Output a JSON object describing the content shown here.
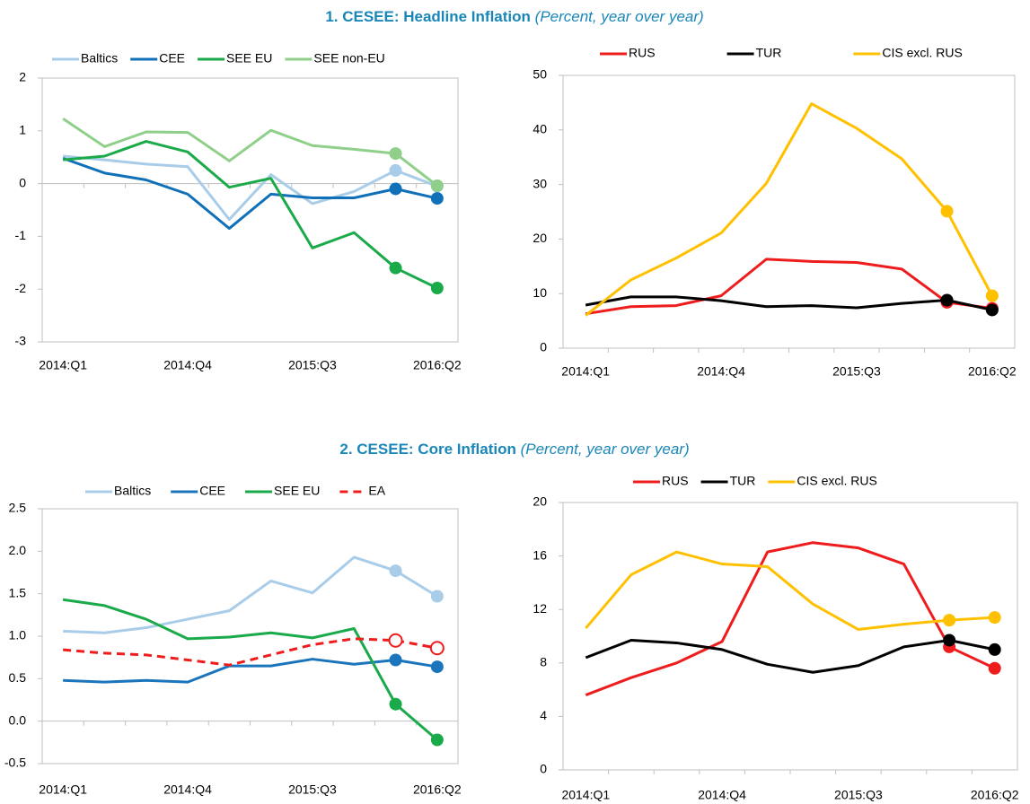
{
  "sections": [
    {
      "title": "1. CESEE: Headline Inflation",
      "subtitle": "(Percent, year over year)"
    },
    {
      "title": "2. CESEE: Core Inflation",
      "subtitle": "(Percent, year over year)"
    }
  ],
  "chart_data": [
    {
      "type": "line",
      "categories": [
        "2014:Q1",
        null,
        null,
        "2014:Q4",
        null,
        null,
        "2015:Q3",
        null,
        null,
        "2016:Q2"
      ],
      "ylim": [
        -3,
        2
      ],
      "yticks": [
        -3,
        -2,
        -1,
        0,
        1,
        2
      ],
      "series": [
        {
          "name": "Baltics",
          "color": "#a9cce8",
          "marker": "filled",
          "values": [
            0.52,
            0.45,
            0.37,
            0.32,
            -0.68,
            0.17,
            -0.38,
            -0.15,
            0.25,
            -0.05
          ]
        },
        {
          "name": "CEE",
          "color": "#1070b8",
          "marker": "filled",
          "values": [
            0.48,
            0.2,
            0.07,
            -0.2,
            -0.85,
            -0.2,
            -0.27,
            -0.27,
            -0.1,
            -0.28
          ]
        },
        {
          "name": "SEE EU",
          "color": "#1aaa4a",
          "marker": "filled",
          "values": [
            0.45,
            0.52,
            0.8,
            0.6,
            -0.07,
            0.1,
            -1.22,
            -0.93,
            -1.6,
            -1.98
          ]
        },
        {
          "name": "SEE non-EU",
          "color": "#8fcf8a",
          "marker": "filled",
          "values": [
            1.23,
            0.7,
            0.98,
            0.97,
            0.43,
            1.01,
            0.72,
            0.65,
            0.57,
            -0.04
          ]
        }
      ]
    },
    {
      "type": "line",
      "categories": [
        "2014:Q1",
        null,
        null,
        "2014:Q4",
        null,
        null,
        "2015:Q3",
        null,
        null,
        "2016:Q2"
      ],
      "ylim": [
        0,
        50
      ],
      "yticks": [
        0,
        10,
        20,
        30,
        40,
        50
      ],
      "series": [
        {
          "name": "RUS",
          "color": "#ee1c1c",
          "marker": "filled",
          "values": [
            6.3,
            7.6,
            7.8,
            9.6,
            16.3,
            15.9,
            15.7,
            14.5,
            8.4,
            7.3
          ]
        },
        {
          "name": "TUR",
          "color": "#000000",
          "marker": "filled",
          "values": [
            7.9,
            9.4,
            9.4,
            8.7,
            7.6,
            7.8,
            7.4,
            8.2,
            8.8,
            7.0
          ]
        },
        {
          "name": "CIS excl. RUS",
          "color": "#ffc000",
          "marker": "filled",
          "values": [
            6.0,
            12.5,
            16.5,
            21.1,
            30.2,
            44.8,
            40.3,
            34.7,
            25.1,
            9.6
          ]
        }
      ]
    },
    {
      "type": "line",
      "categories": [
        "2014:Q1",
        null,
        null,
        "2014:Q4",
        null,
        null,
        "2015:Q3",
        null,
        null,
        "2016:Q2"
      ],
      "ylim": [
        -0.5,
        2.5
      ],
      "yticks": [
        -0.5,
        {
          "value": 0,
          "label": "0.0"
        },
        0.5,
        {
          "value": 1,
          "label": "1.0"
        },
        1.5,
        {
          "value": 2,
          "label": "2.0"
        },
        2.5
      ],
      "series": [
        {
          "name": "Baltics",
          "color": "#a9cce8",
          "marker": "filled",
          "values": [
            1.06,
            1.04,
            1.1,
            1.2,
            1.3,
            1.65,
            1.51,
            1.93,
            1.77,
            1.47
          ]
        },
        {
          "name": "CEE",
          "color": "#1b75bc",
          "marker": "filled",
          "values": [
            0.48,
            0.46,
            0.48,
            0.46,
            0.65,
            0.65,
            0.73,
            0.67,
            0.72,
            0.64
          ]
        },
        {
          "name": "SEE EU",
          "color": "#1aaa4a",
          "marker": "filled",
          "values": [
            1.43,
            1.36,
            1.2,
            0.97,
            0.99,
            1.04,
            0.98,
            1.09,
            0.2,
            -0.22
          ]
        },
        {
          "name": "EA",
          "color": "#ee1c1c",
          "marker": "open",
          "dash": true,
          "values": [
            0.84,
            0.8,
            0.78,
            0.72,
            0.66,
            0.78,
            0.9,
            0.97,
            0.95,
            0.86
          ]
        }
      ]
    },
    {
      "type": "line",
      "categories": [
        "2014:Q1",
        null,
        null,
        "2014:Q4",
        null,
        null,
        "2015:Q3",
        null,
        null,
        "2016:Q2"
      ],
      "ylim": [
        0,
        20
      ],
      "yticks": [
        0,
        4,
        8,
        12,
        16,
        20
      ],
      "series": [
        {
          "name": "RUS",
          "color": "#ee1c1c",
          "marker": "filled",
          "values": [
            5.6,
            6.9,
            8.0,
            9.6,
            16.3,
            17.0,
            16.6,
            15.4,
            9.2,
            7.6
          ]
        },
        {
          "name": "TUR",
          "color": "#000000",
          "marker": "filled",
          "values": [
            8.4,
            9.7,
            9.5,
            9.0,
            7.9,
            7.3,
            7.8,
            9.2,
            9.7,
            9.0
          ]
        },
        {
          "name": "CIS excl. RUS",
          "color": "#ffc000",
          "marker": "filled",
          "values": [
            10.6,
            14.6,
            16.3,
            15.4,
            15.2,
            12.4,
            10.5,
            10.9,
            11.2,
            11.4
          ]
        }
      ]
    }
  ]
}
